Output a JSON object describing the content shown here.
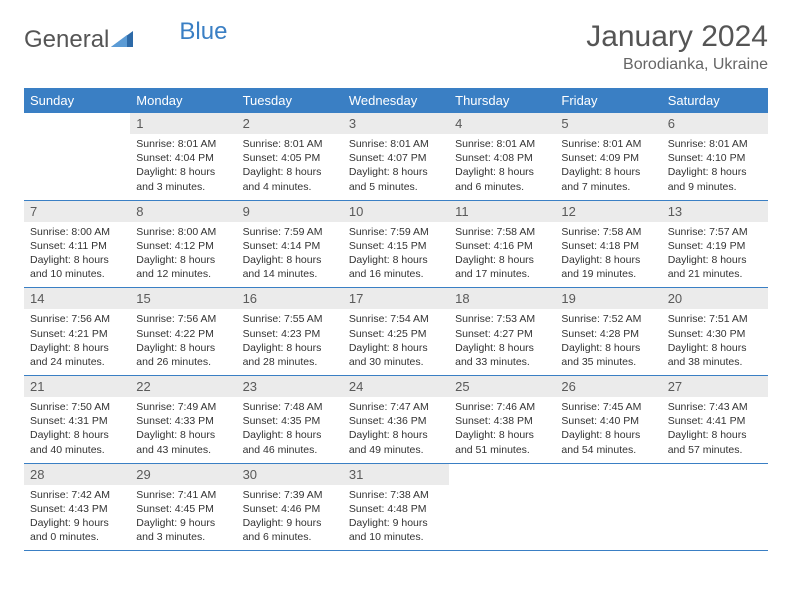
{
  "brand": {
    "part1": "General",
    "part2": "Blue"
  },
  "title": "January 2024",
  "location": "Borodianka, Ukraine",
  "colors": {
    "header_bg": "#3a7fc4",
    "header_fg": "#ffffff",
    "daynum_bg": "#ebebeb",
    "daynum_fg": "#5a5a5a",
    "border": "#3a7fc4",
    "text": "#333333",
    "title_color": "#555555"
  },
  "weekdays": [
    "Sunday",
    "Monday",
    "Tuesday",
    "Wednesday",
    "Thursday",
    "Friday",
    "Saturday"
  ],
  "firstDayOffset": 1,
  "daysInMonth": 31,
  "days": [
    {
      "n": 1,
      "sunrise": "8:01 AM",
      "sunset": "4:04 PM",
      "daylight": "8 hours and 3 minutes."
    },
    {
      "n": 2,
      "sunrise": "8:01 AM",
      "sunset": "4:05 PM",
      "daylight": "8 hours and 4 minutes."
    },
    {
      "n": 3,
      "sunrise": "8:01 AM",
      "sunset": "4:07 PM",
      "daylight": "8 hours and 5 minutes."
    },
    {
      "n": 4,
      "sunrise": "8:01 AM",
      "sunset": "4:08 PM",
      "daylight": "8 hours and 6 minutes."
    },
    {
      "n": 5,
      "sunrise": "8:01 AM",
      "sunset": "4:09 PM",
      "daylight": "8 hours and 7 minutes."
    },
    {
      "n": 6,
      "sunrise": "8:01 AM",
      "sunset": "4:10 PM",
      "daylight": "8 hours and 9 minutes."
    },
    {
      "n": 7,
      "sunrise": "8:00 AM",
      "sunset": "4:11 PM",
      "daylight": "8 hours and 10 minutes."
    },
    {
      "n": 8,
      "sunrise": "8:00 AM",
      "sunset": "4:12 PM",
      "daylight": "8 hours and 12 minutes."
    },
    {
      "n": 9,
      "sunrise": "7:59 AM",
      "sunset": "4:14 PM",
      "daylight": "8 hours and 14 minutes."
    },
    {
      "n": 10,
      "sunrise": "7:59 AM",
      "sunset": "4:15 PM",
      "daylight": "8 hours and 16 minutes."
    },
    {
      "n": 11,
      "sunrise": "7:58 AM",
      "sunset": "4:16 PM",
      "daylight": "8 hours and 17 minutes."
    },
    {
      "n": 12,
      "sunrise": "7:58 AM",
      "sunset": "4:18 PM",
      "daylight": "8 hours and 19 minutes."
    },
    {
      "n": 13,
      "sunrise": "7:57 AM",
      "sunset": "4:19 PM",
      "daylight": "8 hours and 21 minutes."
    },
    {
      "n": 14,
      "sunrise": "7:56 AM",
      "sunset": "4:21 PM",
      "daylight": "8 hours and 24 minutes."
    },
    {
      "n": 15,
      "sunrise": "7:56 AM",
      "sunset": "4:22 PM",
      "daylight": "8 hours and 26 minutes."
    },
    {
      "n": 16,
      "sunrise": "7:55 AM",
      "sunset": "4:23 PM",
      "daylight": "8 hours and 28 minutes."
    },
    {
      "n": 17,
      "sunrise": "7:54 AM",
      "sunset": "4:25 PM",
      "daylight": "8 hours and 30 minutes."
    },
    {
      "n": 18,
      "sunrise": "7:53 AM",
      "sunset": "4:27 PM",
      "daylight": "8 hours and 33 minutes."
    },
    {
      "n": 19,
      "sunrise": "7:52 AM",
      "sunset": "4:28 PM",
      "daylight": "8 hours and 35 minutes."
    },
    {
      "n": 20,
      "sunrise": "7:51 AM",
      "sunset": "4:30 PM",
      "daylight": "8 hours and 38 minutes."
    },
    {
      "n": 21,
      "sunrise": "7:50 AM",
      "sunset": "4:31 PM",
      "daylight": "8 hours and 40 minutes."
    },
    {
      "n": 22,
      "sunrise": "7:49 AM",
      "sunset": "4:33 PM",
      "daylight": "8 hours and 43 minutes."
    },
    {
      "n": 23,
      "sunrise": "7:48 AM",
      "sunset": "4:35 PM",
      "daylight": "8 hours and 46 minutes."
    },
    {
      "n": 24,
      "sunrise": "7:47 AM",
      "sunset": "4:36 PM",
      "daylight": "8 hours and 49 minutes."
    },
    {
      "n": 25,
      "sunrise": "7:46 AM",
      "sunset": "4:38 PM",
      "daylight": "8 hours and 51 minutes."
    },
    {
      "n": 26,
      "sunrise": "7:45 AM",
      "sunset": "4:40 PM",
      "daylight": "8 hours and 54 minutes."
    },
    {
      "n": 27,
      "sunrise": "7:43 AM",
      "sunset": "4:41 PM",
      "daylight": "8 hours and 57 minutes."
    },
    {
      "n": 28,
      "sunrise": "7:42 AM",
      "sunset": "4:43 PM",
      "daylight": "9 hours and 0 minutes."
    },
    {
      "n": 29,
      "sunrise": "7:41 AM",
      "sunset": "4:45 PM",
      "daylight": "9 hours and 3 minutes."
    },
    {
      "n": 30,
      "sunrise": "7:39 AM",
      "sunset": "4:46 PM",
      "daylight": "9 hours and 6 minutes."
    },
    {
      "n": 31,
      "sunrise": "7:38 AM",
      "sunset": "4:48 PM",
      "daylight": "9 hours and 10 minutes."
    }
  ],
  "labels": {
    "sunrise": "Sunrise:",
    "sunset": "Sunset:",
    "daylight": "Daylight:"
  }
}
